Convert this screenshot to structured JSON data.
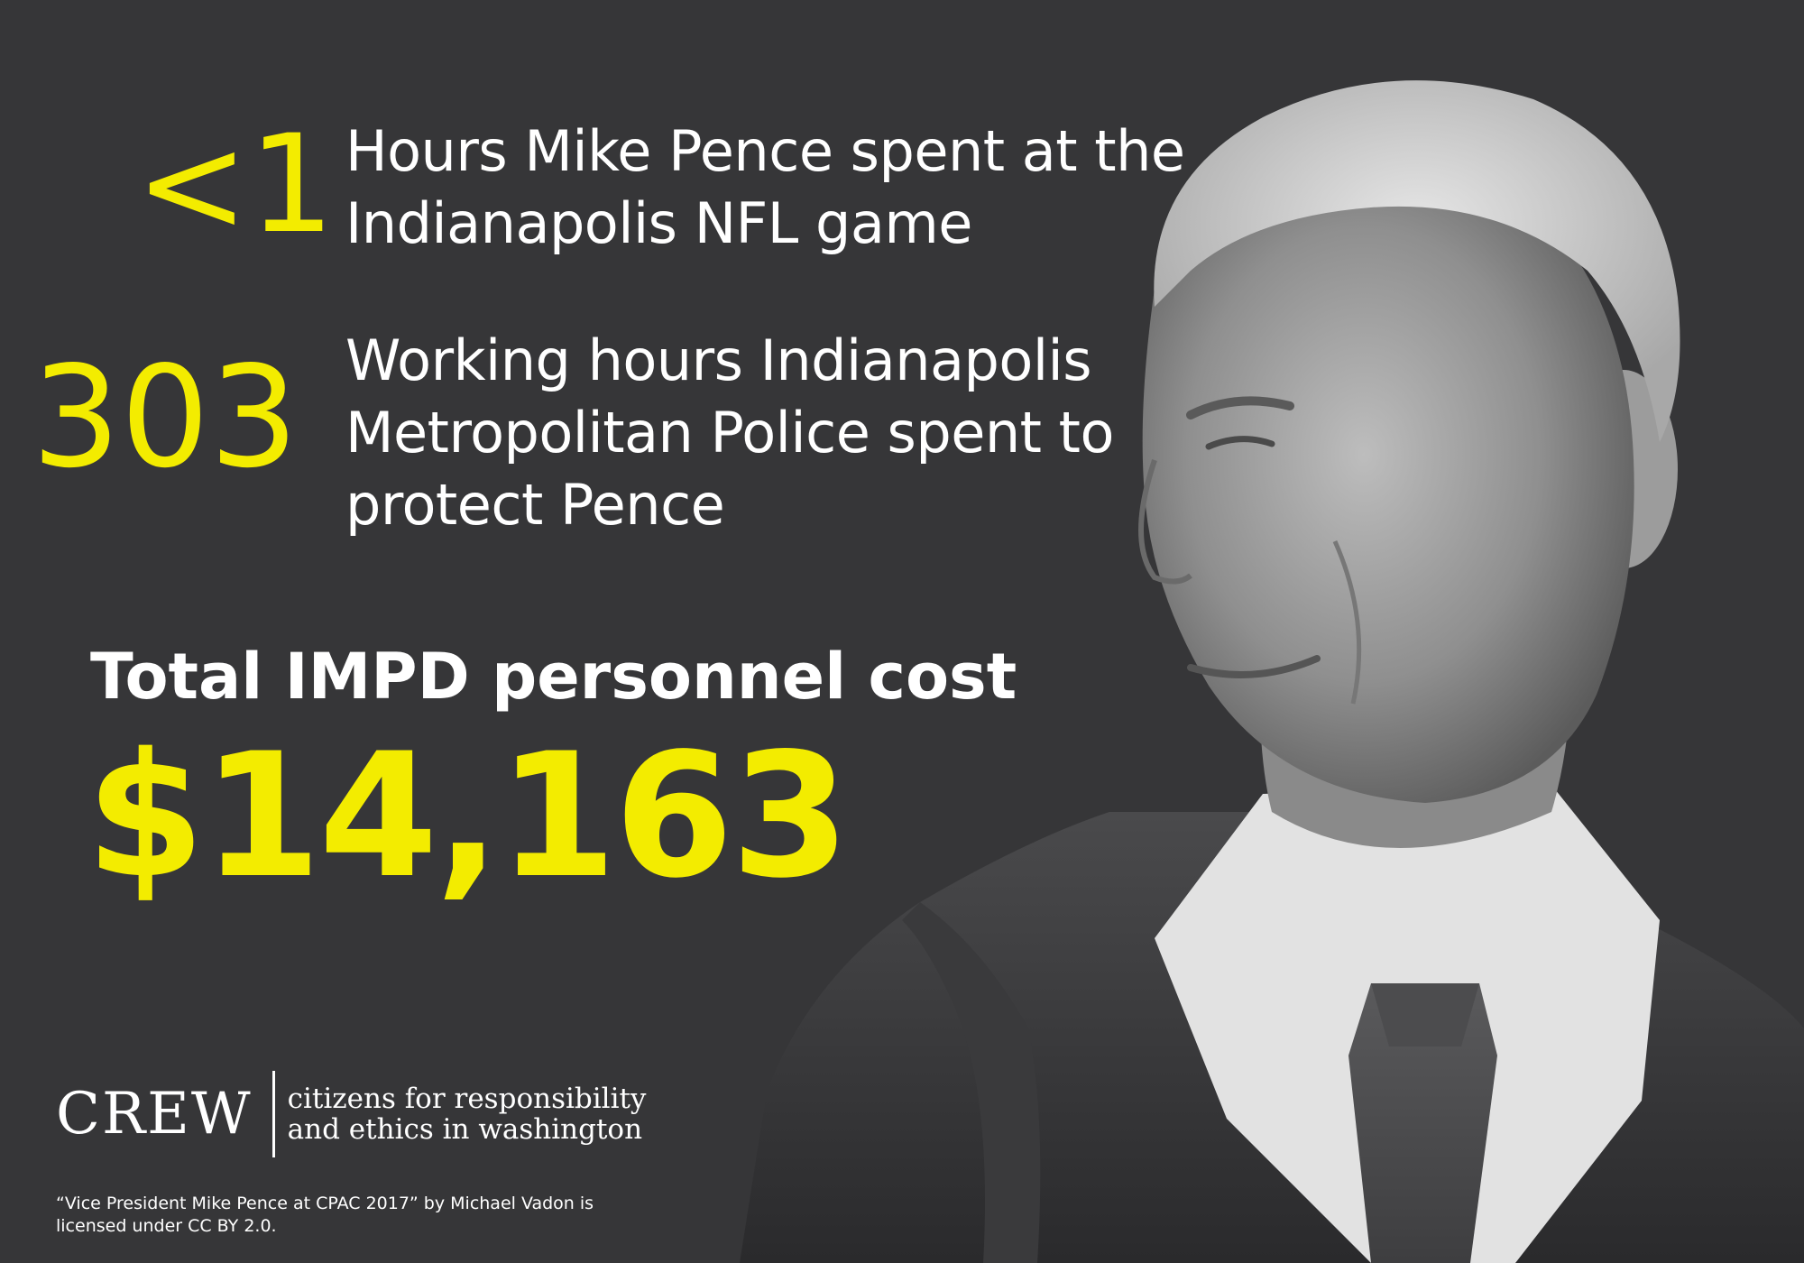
{
  "stats": [
    {
      "number": "<1",
      "line1": "Hours Mike Pence spent at the",
      "line2": "Indianapolis NFL game"
    },
    {
      "number": "303",
      "line1": "Working hours Indianapolis",
      "line2": "Metropolitan Police spent to",
      "line3": "protect Pence"
    }
  ],
  "total": {
    "label": "Total IMPD personnel cost",
    "value": "$14,163"
  },
  "logo": {
    "word": "CREW",
    "tagline_line1": "citizens for responsibility",
    "tagline_line2": "and ethics in washington"
  },
  "credit": {
    "line1": "“Vice President Mike Pence at CPAC 2017” by Michael Vadon is",
    "line2": "licensed under CC BY 2.0."
  },
  "colors": {
    "background": "#363638",
    "accent": "#f3ec00",
    "text": "#ffffff"
  }
}
